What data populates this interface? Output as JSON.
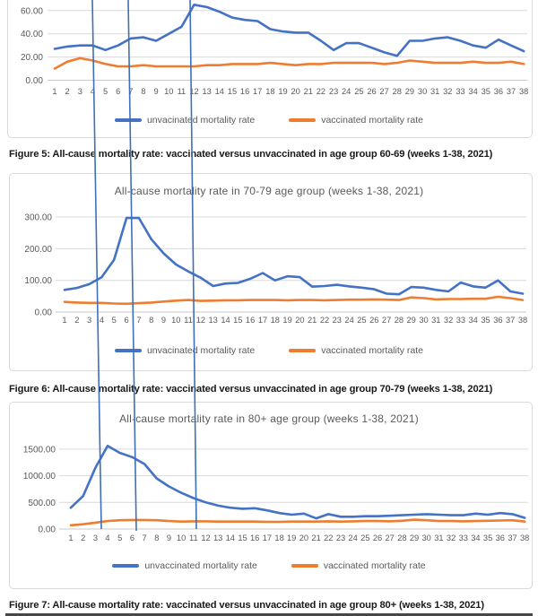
{
  "page": {
    "captions": [
      "Figure 5: All-cause mortality rate: vaccinated versus unvaccinated in age group 60-69 (weeks 1-38, 2021)",
      "Figure 6: All-cause mortality rate: vaccinated versus unvaccinated in age group 70-79 (weeks 1-38, 2021)",
      "Figure 7: All-cause mortality rate: vaccinated versus unvaccinated in age group 80+ (weeks 1-38, 2021)"
    ]
  },
  "annotations": {
    "description": "three hand-drawn vertical reference lines crossing all charts",
    "at_weeks": [
      4,
      7,
      12
    ],
    "color": "#3E6FB8"
  },
  "colors": {
    "unvaccinated_line": "#4472C4",
    "vaccinated_line": "#ED7D31",
    "gridline": "#D9D9D9",
    "tick_text": "#595959"
  },
  "chart_data": [
    {
      "type": "line",
      "title": "",
      "xlabel": "",
      "ylabel": "",
      "x": [
        1,
        2,
        3,
        4,
        5,
        6,
        7,
        8,
        9,
        10,
        11,
        12,
        13,
        14,
        15,
        16,
        17,
        18,
        19,
        20,
        21,
        22,
        23,
        24,
        25,
        26,
        27,
        28,
        29,
        30,
        31,
        32,
        33,
        34,
        35,
        36,
        37,
        38
      ],
      "y_ticks": [
        0,
        20,
        40,
        60
      ],
      "y_tick_labels": [
        "0.00",
        "20.00",
        "40.00",
        "60.00"
      ],
      "ylim": [
        0,
        69
      ],
      "grid": true,
      "legend_position": "bottom",
      "series": [
        {
          "name": "unvacinated mortality rate",
          "color": "#4472C4",
          "values": [
            27,
            29,
            30,
            30,
            26,
            30,
            36,
            37,
            34,
            40,
            46,
            65,
            63,
            59,
            54,
            52,
            51,
            44,
            42,
            41,
            41,
            34,
            26,
            32,
            32,
            28,
            24,
            21,
            34,
            34,
            36,
            37,
            34,
            30,
            28,
            35,
            30,
            25
          ]
        },
        {
          "name": "vaccinated mortality rate",
          "color": "#ED7D31",
          "values": [
            10,
            16,
            19,
            17,
            14,
            12,
            12,
            13,
            12,
            12,
            12,
            12,
            13,
            13,
            14,
            14,
            14,
            15,
            14,
            13,
            14,
            14,
            15,
            15,
            15,
            15,
            14,
            15,
            17,
            16,
            15,
            15,
            15,
            16,
            15,
            15,
            16,
            14
          ]
        }
      ]
    },
    {
      "type": "line",
      "title": "All-cause mortality rate in 70-79 age group (weeks 1-38, 2021)",
      "xlabel": "",
      "ylabel": "",
      "x": [
        1,
        2,
        3,
        4,
        5,
        6,
        7,
        8,
        9,
        10,
        11,
        12,
        13,
        14,
        15,
        16,
        17,
        18,
        19,
        20,
        21,
        22,
        23,
        24,
        25,
        26,
        27,
        28,
        29,
        30,
        31,
        32,
        33,
        34,
        35,
        36,
        37,
        38
      ],
      "y_ticks": [
        0,
        100,
        200,
        300
      ],
      "y_tick_labels": [
        "0.00",
        "100.00",
        "200.00",
        "300.00"
      ],
      "ylim": [
        0,
        330
      ],
      "grid": true,
      "legend_position": "bottom",
      "series": [
        {
          "name": "unvacinated mortality rate",
          "color": "#4472C4",
          "values": [
            70,
            76,
            88,
            110,
            165,
            297,
            297,
            230,
            185,
            150,
            128,
            108,
            82,
            90,
            92,
            105,
            123,
            100,
            113,
            110,
            80,
            82,
            86,
            81,
            77,
            72,
            58,
            56,
            79,
            77,
            70,
            65,
            93,
            81,
            77,
            100,
            65,
            58
          ]
        },
        {
          "name": "vaccinated mortality rate",
          "color": "#ED7D31",
          "values": [
            32,
            30,
            29,
            29,
            27,
            26,
            28,
            30,
            33,
            36,
            38,
            35,
            36,
            37,
            37,
            38,
            38,
            38,
            37,
            38,
            38,
            37,
            38,
            39,
            39,
            40,
            39,
            38,
            46,
            44,
            40,
            41,
            41,
            42,
            42,
            48,
            44,
            38
          ]
        }
      ]
    },
    {
      "type": "line",
      "title": "All-cause mortality rate in 80+ age group (weeks 1-38, 2021)",
      "xlabel": "",
      "ylabel": "",
      "x": [
        1,
        2,
        3,
        4,
        5,
        6,
        7,
        8,
        9,
        10,
        11,
        12,
        13,
        14,
        15,
        16,
        17,
        18,
        19,
        20,
        21,
        22,
        23,
        24,
        25,
        26,
        27,
        28,
        29,
        30,
        31,
        32,
        33,
        34,
        35,
        36,
        37,
        38
      ],
      "y_ticks": [
        0,
        500,
        1000,
        1500
      ],
      "y_tick_labels": [
        "0.00",
        "500.00",
        "1000.00",
        "1500.00"
      ],
      "ylim": [
        0,
        1700
      ],
      "grid": true,
      "legend_position": "bottom",
      "series": [
        {
          "name": "unvaccinated mortality rate",
          "color": "#4472C4",
          "values": [
            400,
            620,
            1150,
            1560,
            1430,
            1350,
            1220,
            950,
            800,
            680,
            580,
            500,
            440,
            400,
            380,
            390,
            350,
            300,
            270,
            290,
            200,
            280,
            230,
            230,
            240,
            240,
            250,
            260,
            270,
            280,
            270,
            260,
            260,
            290,
            270,
            300,
            280,
            210
          ]
        },
        {
          "name": "vaccinated mortality rate",
          "color": "#ED7D31",
          "values": [
            70,
            90,
            120,
            150,
            165,
            170,
            170,
            165,
            150,
            140,
            145,
            145,
            140,
            140,
            140,
            140,
            135,
            135,
            140,
            140,
            140,
            145,
            140,
            145,
            150,
            150,
            145,
            155,
            175,
            165,
            150,
            150,
            145,
            150,
            155,
            160,
            165,
            140
          ]
        }
      ]
    }
  ]
}
